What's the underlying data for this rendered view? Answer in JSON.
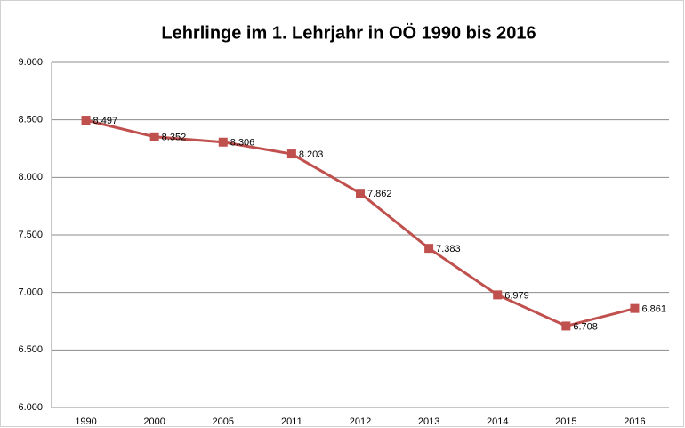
{
  "chart_data": {
    "type": "line",
    "title": "Lehrlinge im 1. Lehrjahr in OÖ 1990 bis 2016",
    "categories": [
      "1990",
      "2000",
      "2005",
      "2011",
      "2012",
      "2013",
      "2014",
      "2015",
      "2016"
    ],
    "series": [
      {
        "name": "Lehrlinge",
        "color": "#c0504d",
        "values": [
          8497,
          8352,
          8306,
          8203,
          7862,
          7383,
          6979,
          6708,
          6861
        ],
        "value_labels": [
          "8.497",
          "8.352",
          "8.306",
          "8.203",
          "7.862",
          "7.383",
          "6.979",
          "6.708",
          "6.861"
        ]
      }
    ],
    "ylim": [
      6000,
      9000
    ],
    "yticks": [
      {
        "value": 6000,
        "label": "6.000"
      },
      {
        "value": 6500,
        "label": "6.500"
      },
      {
        "value": 7000,
        "label": "7.000"
      },
      {
        "value": 7500,
        "label": "7.500"
      },
      {
        "value": 8000,
        "label": "8.000"
      },
      {
        "value": 8500,
        "label": "8.500"
      },
      {
        "value": 9000,
        "label": "9.000"
      }
    ],
    "grid": true
  }
}
